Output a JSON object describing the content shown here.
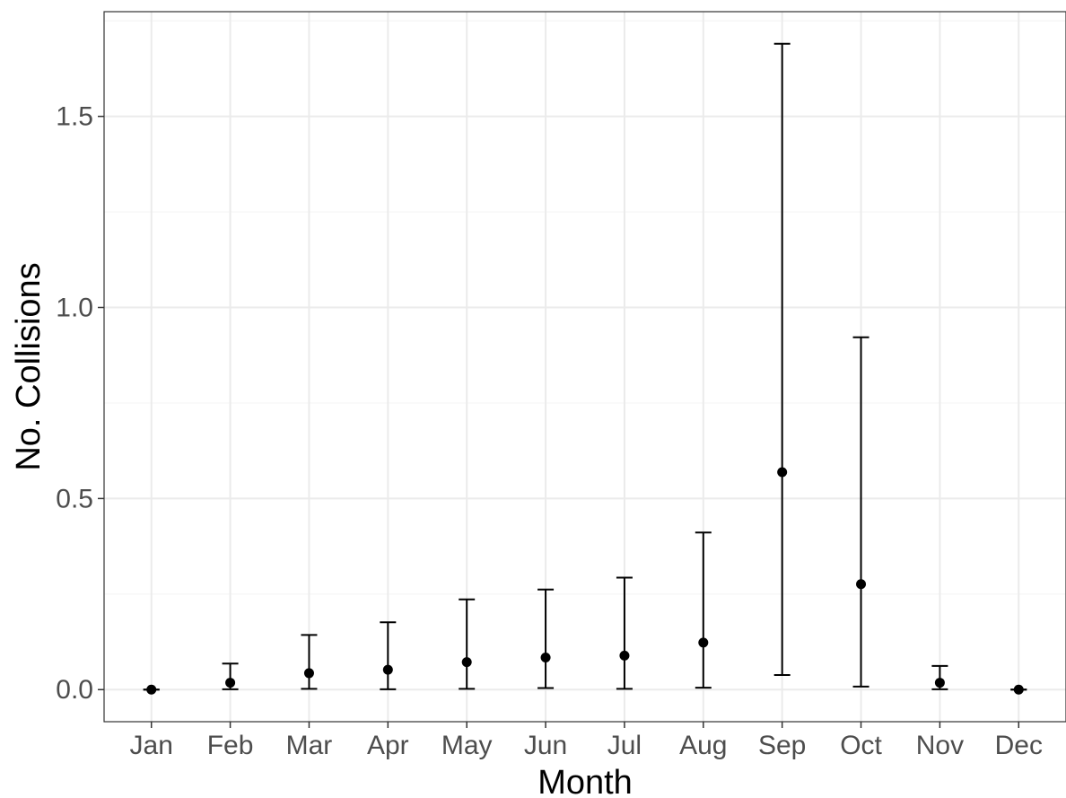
{
  "chart_data": {
    "type": "scatter",
    "subtype": "point-with-errorbars",
    "title": "",
    "xlabel": "Month",
    "ylabel": "No. Collisions",
    "categories": [
      "Jan",
      "Feb",
      "Mar",
      "Apr",
      "May",
      "Jun",
      "Jul",
      "Aug",
      "Sep",
      "Oct",
      "Nov",
      "Dec"
    ],
    "series": [
      {
        "values": [
          0.0,
          0.018,
          0.043,
          0.052,
          0.072,
          0.084,
          0.089,
          0.123,
          0.569,
          0.276,
          0.018,
          0.0
        ],
        "lower": [
          0.0,
          0.001,
          0.002,
          0.001,
          0.002,
          0.004,
          0.002,
          0.005,
          0.038,
          0.008,
          0.001,
          0.0
        ],
        "upper": [
          0.0,
          0.068,
          0.143,
          0.176,
          0.236,
          0.262,
          0.293,
          0.411,
          1.69,
          0.922,
          0.062,
          0.0
        ]
      }
    ],
    "yticks": [
      0.0,
      0.5,
      1.0,
      1.5
    ],
    "ytick_labels": [
      "0.0",
      "0.5",
      "1.0",
      "1.5"
    ],
    "ylim": [
      -0.084,
      1.774
    ],
    "grid": true,
    "legend": "none",
    "colors": {
      "marks": "#000000",
      "grid_major": "#ebebeb",
      "grid_minor": "#f5f5f5",
      "panel_border": "#333333",
      "tick_text": "#4d4d4d"
    }
  }
}
